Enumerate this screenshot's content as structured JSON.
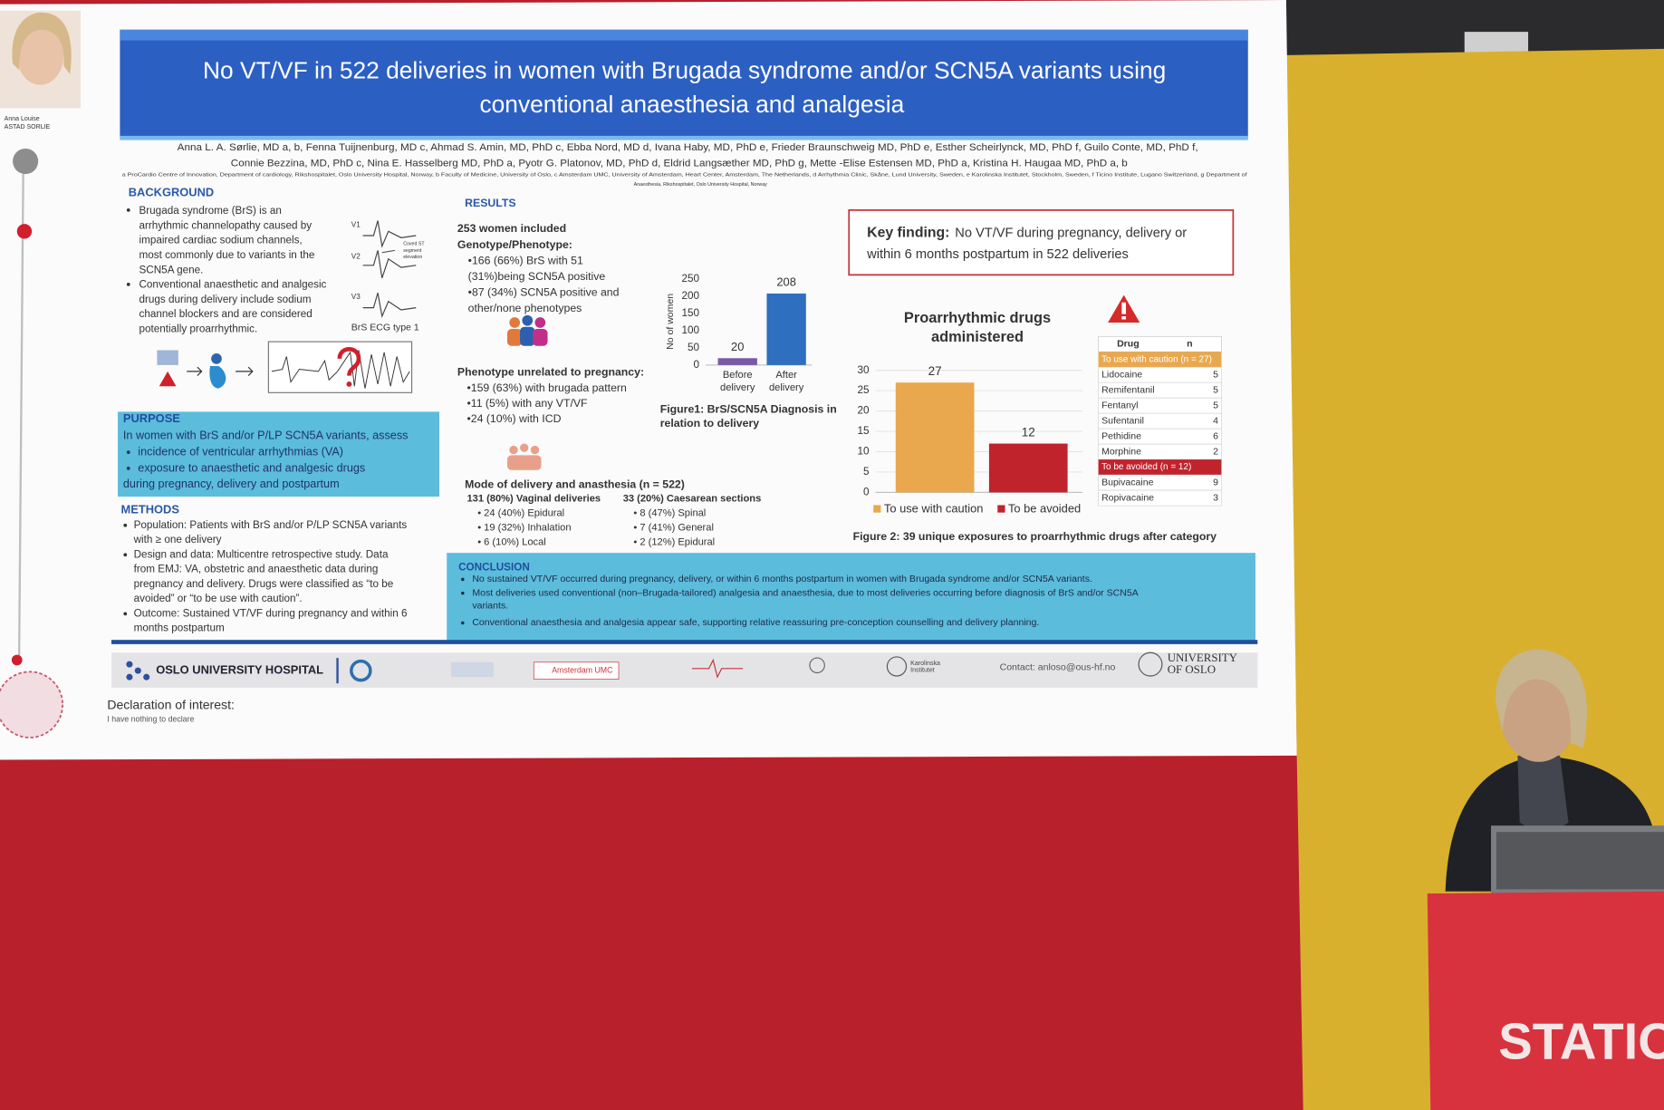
{
  "speaker_caption": [
    "Anna Louise",
    "ASTAD SORLIE"
  ],
  "poster": {
    "title": [
      "No VT/VF in 522 deliveries in women with Brugada syndrome and/or SCN5A variants using",
      "conventional anaesthesia and analgesia"
    ],
    "authors": [
      "Anna L. A. Sørlie, MD a, b, Fenna Tuijnenburg, MD c, Ahmad S. Amin, MD, PhD c, Ebba Nord, MD d, Ivana Haby, MD, PhD e, Frieder Braunschweig MD, PhD e, Esther Scheirlynck, MD, PhD f, Guilo Conte, MD, PhD f,",
      "Connie Bezzina, MD, PhD c, Nina E. Hasselberg MD, PhD a, Pyotr G. Platonov, MD, PhD d, Eldrid Langsæther MD, PhD g, Mette -Elise Estensen MD, PhD a, Kristina H. Haugaa MD, PhD a, b"
    ],
    "affiliations": [
      "a ProCardio Centre of Innovation, Department of cardiology, Rikshospitalet, Oslo University Hospital, Norway, b Faculty of Medicine, University of Oslo, c Amsterdam UMC, University of Amsterdam, Heart Center, Amsterdam, The Netherlands, d Arrhythmia Clinic, Skåne, Lund University, Sweden, e Karolinska Institutet, Stockholm, Sweden, f Ticino Institute, Lugano Switzerland, g Department of",
      "Anaesthesia, Rikshospitalet, Oslo University Hospital, Norway"
    ],
    "background": {
      "heading": "BACKGROUND",
      "lines": [
        "Brugada syndrome (BrS) is an",
        "arrhythmic channelopathy caused by",
        "impaired cardiac sodium channels,",
        "most commonly due to variants in the",
        "SCN5A gene.",
        "Conventional anaesthetic and analgesic",
        "drugs during delivery include sodium",
        "channel blockers and are considered",
        "potentially proarrhythmic."
      ],
      "ecg_leads": [
        "V1",
        "V2",
        "V3"
      ],
      "ecg_note": [
        "Coved ST",
        "segment",
        "elevation"
      ],
      "ecg_caption": "BrS ECG type 1"
    },
    "purpose": {
      "heading": "PURPOSE",
      "lines": [
        "In women with BrS and/or P/LP SCN5A variants, assess",
        "incidence of ventricular arrhythmias (VA)",
        "exposure to anaesthetic and analgesic drugs",
        "during pregnancy, delivery and postpartum"
      ]
    },
    "methods": {
      "heading": "METHODS",
      "lines": [
        "Population: Patients with BrS and/or P/LP SCN5A variants",
        "with ≥ one delivery",
        "Design and data: Multicentre retrospective study. Data",
        "from EMJ: VA, obstetric and anaesthetic data during",
        "pregnancy and delivery. Drugs were classified as “to be",
        "avoided” or “to be use with caution”.",
        "Outcome: Sustained VT/VF during pregnancy and within 6",
        "months postpartum"
      ]
    },
    "results": {
      "heading": "RESULTS",
      "intro": [
        "253 women included",
        "Genotype/Phenotype:"
      ],
      "genotype": [
        "•166 (66%) BrS with 51",
        "(31%)being SCN5A positive",
        "•87 (34%) SCN5A positive and",
        "other/none phenotypes"
      ],
      "phenotype_heading": "Phenotype unrelated to pregnancy:",
      "phenotype": [
        "•159 (63%)  with brugada pattern",
        "•11 (5%) with any VT/VF",
        "•24 (10%) with ICD"
      ],
      "mode_heading": "Mode of delivery and anasthesia (n = 522)",
      "vaginal": [
        "131 (80%) Vaginal deliveries",
        "• 24 (40%) Epidural",
        "• 19 (32%) Inhalation",
        "• 6 (10%) Local"
      ],
      "caesarean": [
        "33 (20%) Caesarean sections",
        "• 8 (47%) Spinal",
        "• 7 (41%) General",
        "• 2 (12%) Epidural"
      ]
    },
    "key_finding": {
      "label": "Key finding:",
      "lines": [
        "No VT/VF  during pregnancy, delivery or",
        "within 6 months postpartum in 522 deliveries"
      ]
    },
    "drug_table": {
      "header": [
        "Drug",
        "n"
      ],
      "groups": [
        {
          "name": "To use with caution (n = 27)",
          "rows": [
            [
              "Lidocaine",
              5
            ],
            [
              "Remifentanil",
              5
            ],
            [
              "Fentanyl",
              5
            ],
            [
              "Sufentanil",
              4
            ],
            [
              "Pethidine",
              6
            ],
            [
              "Morphine",
              2
            ]
          ]
        },
        {
          "name": "To be avoided (n = 12)",
          "rows": [
            [
              "Bupivacaine",
              9
            ],
            [
              "Ropivacaine",
              3
            ]
          ]
        }
      ]
    },
    "conclusion": {
      "heading": "CONCLUSION",
      "lines": [
        "No sustained VT/VF occurred during pregnancy, delivery, or within 6 months postpartum in women with Brugada syndrome and/or SCN5A variants.",
        "Most deliveries used conventional (non–Brugada-tailored) analgesia and anaesthesia, due to most deliveries occurring before diagnosis of BrS and/or SCN5A",
        "variants.",
        "Conventional anaesthesia and analgesia appear safe, supporting relative reassuring pre-conception counselling and delivery planning."
      ]
    },
    "footer": {
      "hospital": "OSLO UNIVERSITY HOSPITAL",
      "amsterdam": "Amsterdam UMC",
      "karolinska": [
        "Karolinska",
        "Institutet"
      ],
      "contact": "Contact: anloso@ous-hf.no",
      "university": [
        "UNIVERSITY",
        "OF OSLO"
      ]
    },
    "declaration": [
      "Declaration of interest:",
      "I have nothing to declare"
    ]
  },
  "chart_data": [
    {
      "type": "bar",
      "caption": "Figure1: BrS/SCN5A Diagnosis in relation to delivery",
      "y_label": "No of women",
      "categories": [
        "Before delivery",
        "After delivery"
      ],
      "values": [
        20,
        208
      ],
      "colors": [
        "#7a5aa6",
        "#2f6fbf"
      ],
      "ylim": [
        0,
        250
      ],
      "yticks": [
        0,
        50,
        100,
        150,
        200,
        250
      ],
      "grid": false,
      "data_labels": true
    },
    {
      "type": "bar",
      "title": "Proarrhythmic drugs administered",
      "caption": "Figure 2: 39 unique exposures to proarrhythmic drugs after category",
      "categories": [
        "To use with caution",
        "To be avoided"
      ],
      "values": [
        27,
        12
      ],
      "colors": [
        "#e9a84e",
        "#c1232d"
      ],
      "ylim": [
        0,
        30
      ],
      "yticks": [
        0,
        5,
        10,
        15,
        20,
        25,
        30
      ],
      "grid": true,
      "legend": "bottom",
      "data_labels": true
    }
  ],
  "stage_sign": "STATIO"
}
